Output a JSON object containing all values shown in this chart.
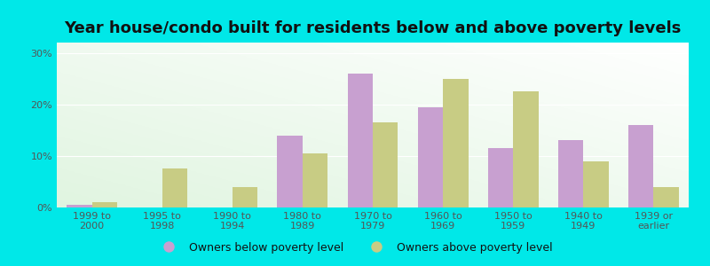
{
  "title": "Year house/condo built for residents below and above poverty levels",
  "categories": [
    "1999 to\n2000",
    "1995 to\n1998",
    "1990 to\n1994",
    "1980 to\n1989",
    "1970 to\n1979",
    "1960 to\n1969",
    "1950 to\n1959",
    "1940 to\n1949",
    "1939 or\nearlier"
  ],
  "below_poverty": [
    0.5,
    0.0,
    0.0,
    14.0,
    26.0,
    19.5,
    11.5,
    13.0,
    16.0
  ],
  "above_poverty": [
    1.0,
    7.5,
    4.0,
    10.5,
    16.5,
    25.0,
    22.5,
    9.0,
    4.0
  ],
  "below_color": "#c8a0d0",
  "above_color": "#c8cc84",
  "background_top": "#dff0d8",
  "background_bottom": "#f5fff5",
  "outer_background": "#00e8e8",
  "ylim": [
    0,
    32
  ],
  "yticks": [
    0,
    10,
    20,
    30
  ],
  "ytick_labels": [
    "0%",
    "10%",
    "20%",
    "30%"
  ],
  "legend_below": "Owners below poverty level",
  "legend_above": "Owners above poverty level",
  "title_fontsize": 13,
  "tick_fontsize": 8,
  "legend_fontsize": 9,
  "tick_color": "#555555",
  "title_color": "#111111"
}
